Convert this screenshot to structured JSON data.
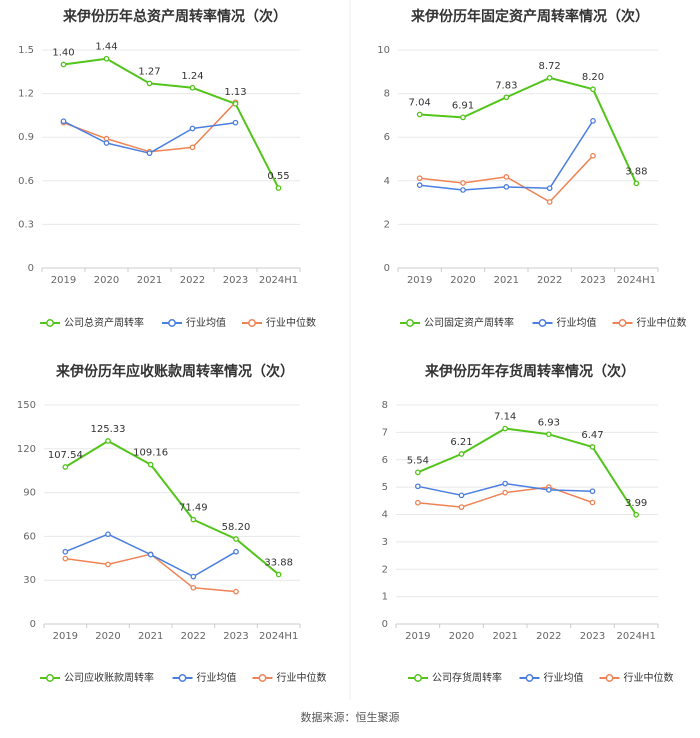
{
  "colors": {
    "company": "#52c41a",
    "avg": "#4a7ee0",
    "median": "#ef8354",
    "grid": "#e8e8e8",
    "divider": "#eeeeee"
  },
  "legend": {
    "avg": "行业均值",
    "median": "行业中位数"
  },
  "source": "数据来源：恒生聚源",
  "chart_data": [
    {
      "type": "line",
      "title": "来伊份历年总资产周转率情况（次）",
      "categories": [
        "2019",
        "2020",
        "2021",
        "2022",
        "2023",
        "2024H1"
      ],
      "ylim": [
        0,
        1.5
      ],
      "yticks": [
        "0",
        "0.3",
        "0.6",
        "0.9",
        "1.2",
        "1.5"
      ],
      "series": [
        {
          "name": "公司总资产周转率",
          "key": "company",
          "values": [
            1.4,
            1.44,
            1.27,
            1.24,
            1.13,
            0.55
          ],
          "labels": [
            "1.40",
            "1.44",
            "1.27",
            "1.24",
            "1.13",
            "0.55"
          ]
        },
        {
          "name": "行业均值",
          "key": "avg",
          "values": [
            1.01,
            0.86,
            0.79,
            0.96,
            1.0,
            null
          ]
        },
        {
          "name": "行业中位数",
          "key": "median",
          "values": [
            1.0,
            0.89,
            0.8,
            0.83,
            1.14,
            null
          ]
        }
      ]
    },
    {
      "type": "line",
      "title": "来伊份历年固定资产周转率情况（次）",
      "categories": [
        "2019",
        "2020",
        "2021",
        "2022",
        "2023",
        "2024H1"
      ],
      "ylim": [
        0,
        10
      ],
      "yticks": [
        "0",
        "2",
        "4",
        "6",
        "8",
        "10"
      ],
      "series": [
        {
          "name": "公司固定资产周转率",
          "key": "company",
          "values": [
            7.04,
            6.91,
            7.83,
            8.72,
            8.2,
            3.88
          ],
          "labels": [
            "7.04",
            "6.91",
            "7.83",
            "8.72",
            "8.20",
            "3.88"
          ]
        },
        {
          "name": "行业均值",
          "key": "avg",
          "values": [
            3.8,
            3.58,
            3.72,
            3.66,
            6.75,
            null
          ]
        },
        {
          "name": "行业中位数",
          "key": "median",
          "values": [
            4.12,
            3.9,
            4.18,
            3.03,
            5.15,
            null
          ]
        }
      ]
    },
    {
      "type": "line",
      "title": "来伊份历年应收账款周转率情况（次）",
      "categories": [
        "2019",
        "2020",
        "2021",
        "2022",
        "2023",
        "2024H1"
      ],
      "ylim": [
        0,
        150
      ],
      "yticks": [
        "0",
        "30",
        "60",
        "90",
        "120",
        "150"
      ],
      "series": [
        {
          "name": "公司应收账款周转率",
          "key": "company",
          "values": [
            107.54,
            125.33,
            109.16,
            71.49,
            58.2,
            33.88
          ],
          "labels": [
            "107.54",
            "125.33",
            "109.16",
            "71.49",
            "58.20",
            "33.88"
          ]
        },
        {
          "name": "行业均值",
          "key": "avg",
          "values": [
            49.5,
            61.5,
            47.5,
            32.5,
            49.5,
            null
          ]
        },
        {
          "name": "行业中位数",
          "key": "median",
          "values": [
            44.8,
            40.8,
            47.8,
            24.8,
            22.2,
            null
          ]
        }
      ]
    },
    {
      "type": "line",
      "title": "来伊份历年存货周转率情况（次）",
      "categories": [
        "2019",
        "2020",
        "2021",
        "2022",
        "2023",
        "2024H1"
      ],
      "ylim": [
        0,
        8
      ],
      "yticks": [
        "0",
        "1",
        "2",
        "3",
        "4",
        "5",
        "6",
        "7",
        "8"
      ],
      "series": [
        {
          "name": "公司存货周转率",
          "key": "company",
          "values": [
            5.54,
            6.21,
            7.14,
            6.93,
            6.47,
            3.99
          ],
          "labels": [
            "5.54",
            "6.21",
            "7.14",
            "6.93",
            "6.47",
            "3.99"
          ]
        },
        {
          "name": "行业均值",
          "key": "avg",
          "values": [
            5.03,
            4.7,
            5.13,
            4.9,
            4.85,
            null
          ]
        },
        {
          "name": "行业中位数",
          "key": "median",
          "values": [
            4.43,
            4.27,
            4.8,
            5.0,
            4.44,
            null
          ]
        }
      ]
    }
  ]
}
